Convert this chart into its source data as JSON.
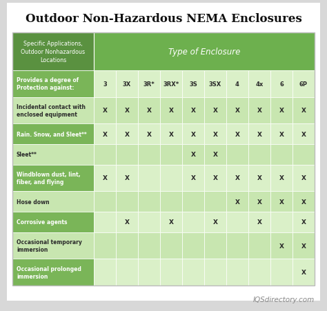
{
  "title": "Outdoor Non-Hazardous NEMA Enclosures",
  "col_header_left": "Specific Applications,\nOutdoor Nonhazardous\nLocations",
  "col_header_right": "Type of Enclosure",
  "enclosure_types": [
    "3",
    "3X",
    "3R*",
    "3RX*",
    "3S",
    "3SX",
    "4",
    "4x",
    "6",
    "6P"
  ],
  "rows": [
    {
      "label": "Provides a degree of\nProtection against:",
      "marks": [
        "",
        "",
        "",
        "",
        "",
        "",
        "",
        "",
        "",
        ""
      ],
      "two_line": true
    },
    {
      "label": "Incidental contact with\nenclosed equipment",
      "marks": [
        "X",
        "X",
        "X",
        "X",
        "X",
        "X",
        "X",
        "X",
        "X",
        "X"
      ],
      "two_line": true
    },
    {
      "label": "Rain. Snow, and Sleet**",
      "marks": [
        "X",
        "X",
        "X",
        "X",
        "X",
        "X",
        "X",
        "X",
        "X",
        "X"
      ],
      "two_line": false
    },
    {
      "label": "Sleet**",
      "marks": [
        "",
        "",
        "",
        "",
        "X",
        "X",
        "",
        "",
        "",
        ""
      ],
      "two_line": false
    },
    {
      "label": "Windblown dust, lint,\nfiber, and flying",
      "marks": [
        "X",
        "X",
        "",
        "",
        "X",
        "X",
        "X",
        "X",
        "X",
        "X"
      ],
      "two_line": true
    },
    {
      "label": "Hose down",
      "marks": [
        "",
        "",
        "",
        "",
        "",
        "",
        "X",
        "X",
        "X",
        "X"
      ],
      "two_line": false
    },
    {
      "label": "Corrosive agents",
      "marks": [
        "",
        "X",
        "",
        "X",
        "",
        "X",
        "",
        "X",
        "",
        "X"
      ],
      "two_line": false
    },
    {
      "label": "Occasional temporary\nimmersion",
      "marks": [
        "",
        "",
        "",
        "",
        "",
        "",
        "",
        "",
        "X",
        "X"
      ],
      "two_line": true
    },
    {
      "label": "Occasional prolonged\nimmersion",
      "marks": [
        "",
        "",
        "",
        "",
        "",
        "",
        "",
        "",
        "",
        "X"
      ],
      "two_line": true
    }
  ],
  "color_header_dark": "#5a9140",
  "color_header_light": "#6db04e",
  "color_row_green": "#7ab558",
  "color_row_light": "#c8e6b0",
  "color_row_lighter": "#daf0c8",
  "color_title_bg": "#ffffff",
  "color_outer_bg": "#d8d8d8",
  "color_title": "#111111",
  "color_label_text_dark": "#ffffff",
  "color_label_text_light": "#333333",
  "color_mark": "#2a2a2a",
  "watermark": "IQSdirectory.com",
  "watermark_color": "#888888"
}
